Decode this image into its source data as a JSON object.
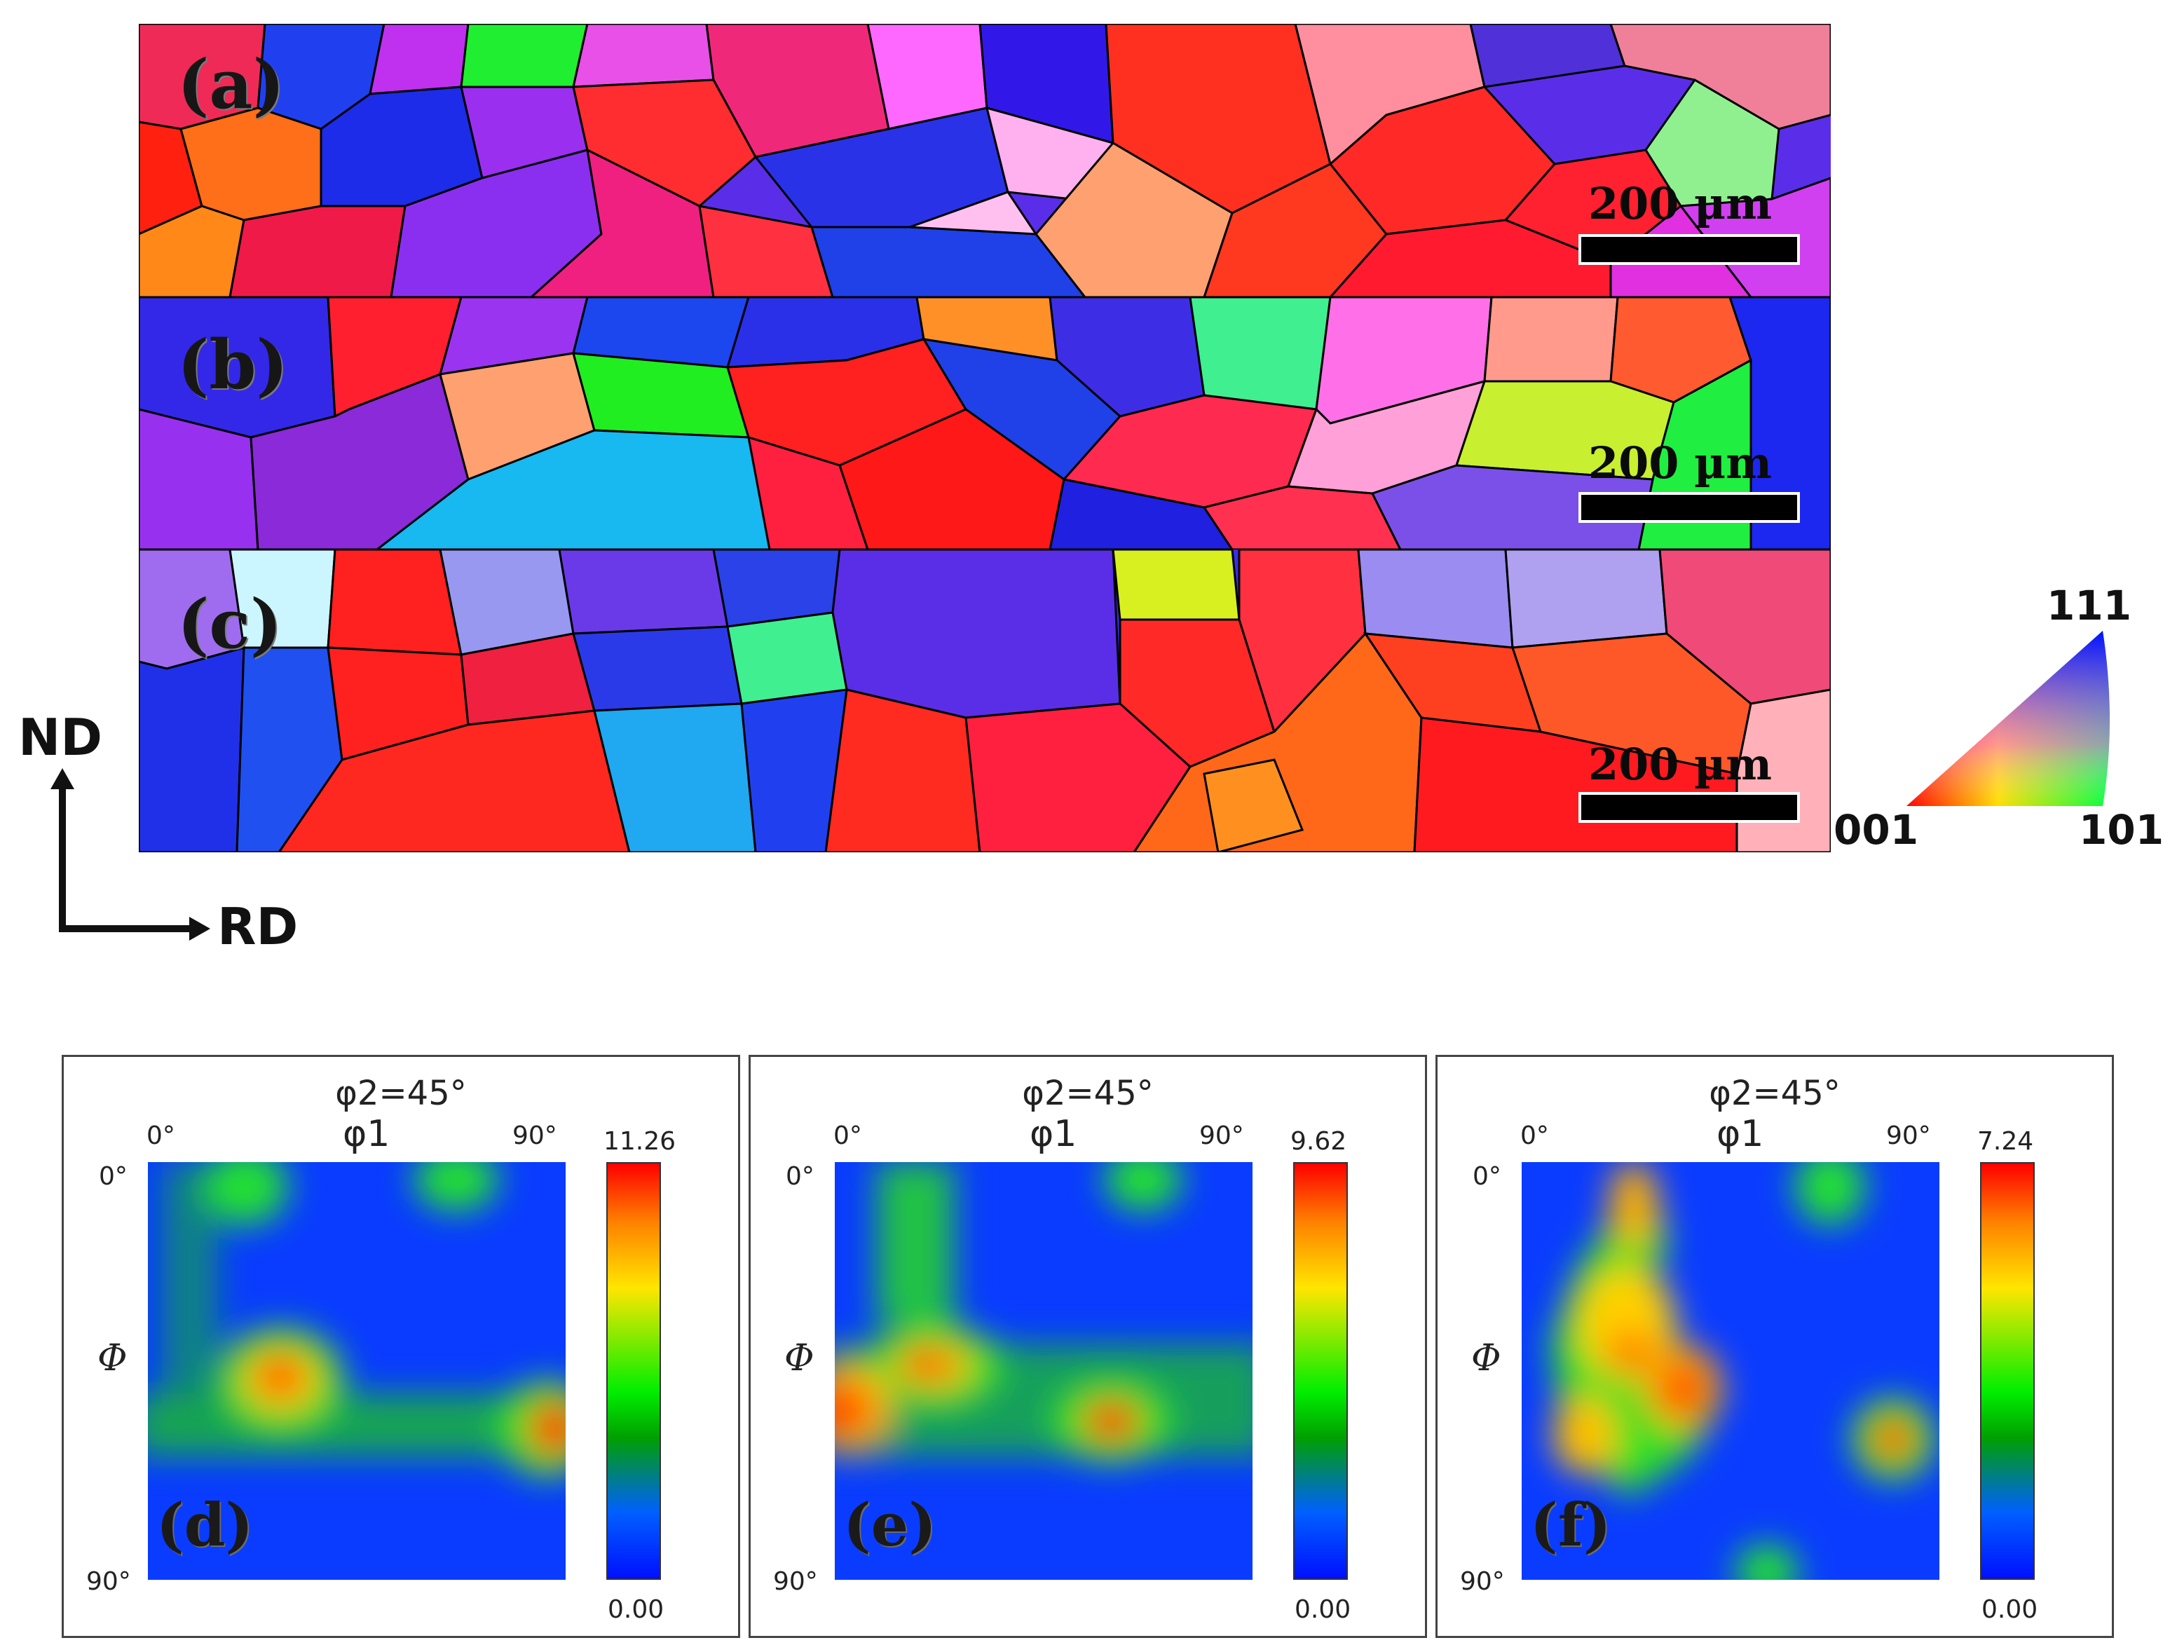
{
  "ebsd": {
    "panels": [
      {
        "label": "(a)",
        "scalebar": "200 µm"
      },
      {
        "label": "(b)",
        "scalebar": "200 µm"
      },
      {
        "label": "(c)",
        "scalebar": "200 µm"
      }
    ],
    "axes": {
      "vertical": "ND",
      "horizontal": "RD"
    },
    "ipf_key": {
      "top": "111",
      "left": "001",
      "right": "101"
    }
  },
  "odf": {
    "panels": [
      {
        "label": "(d)",
        "section": "φ2=45°",
        "x_axis": "φ1",
        "y_axis": "Φ",
        "x_start": "0°",
        "x_end": "90°",
        "y_start": "0°",
        "y_end": "90°",
        "max": "11.26",
        "min": "0.00"
      },
      {
        "label": "(e)",
        "section": "φ2=45°",
        "x_axis": "φ1",
        "y_axis": "Φ",
        "x_start": "0°",
        "x_end": "90°",
        "y_start": "0°",
        "y_end": "90°",
        "max": "9.62",
        "min": "0.00"
      },
      {
        "label": "(f)",
        "section": "φ2=45°",
        "x_axis": "φ1",
        "y_axis": "Φ",
        "x_start": "0°",
        "x_end": "90°",
        "y_start": "0°",
        "y_end": "90°",
        "max": "7.24",
        "min": "0.00"
      }
    ]
  },
  "colors": {
    "low": "#0010ff",
    "mid": "#00ee00",
    "high": "#ff0000",
    "grain_boundary": "#000000"
  }
}
